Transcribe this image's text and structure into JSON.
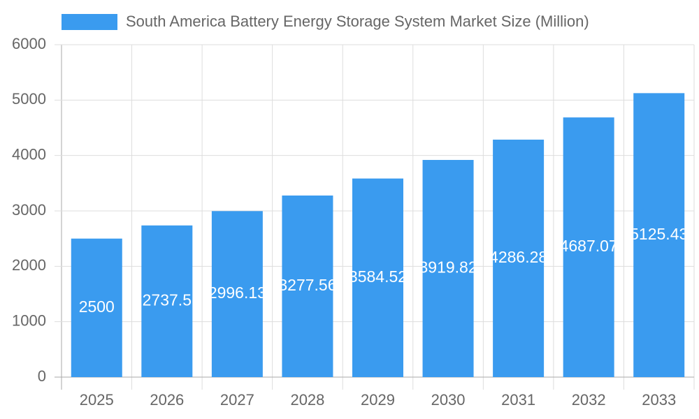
{
  "chart_data": {
    "type": "bar",
    "series": [
      {
        "name": "South America Battery Energy Storage System Market Size (Million)",
        "color": "#3a9bef",
        "values": [
          2500,
          2737.5,
          2996.13,
          3277.56,
          3584.52,
          3919.82,
          4286.28,
          4687.07,
          5125.43
        ]
      }
    ],
    "categories": [
      "2025",
      "2026",
      "2027",
      "2028",
      "2029",
      "2030",
      "2031",
      "2032",
      "2033"
    ],
    "ylim": [
      0,
      6000
    ],
    "yticks": [
      0,
      1000,
      2000,
      3000,
      4000,
      5000,
      6000
    ],
    "grid": true,
    "legend": "top"
  }
}
